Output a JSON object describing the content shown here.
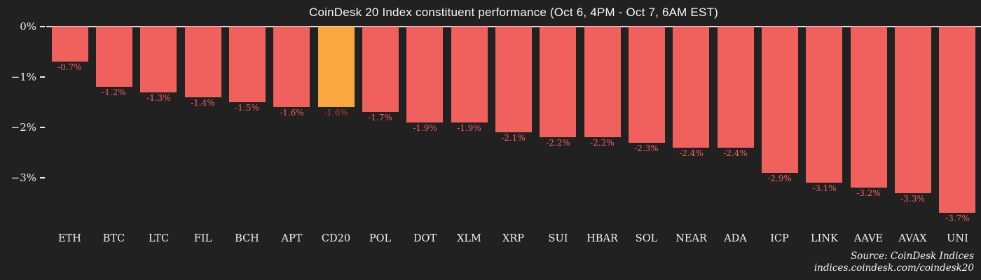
{
  "title": "CoinDesk 20 Index constituent performance (Oct 6, 4PM - Oct 7, 6AM EST)",
  "source": {
    "line1": "Source: CoinDesk Indices",
    "line2": "indices.coindesk.com/coindesk20"
  },
  "colors": {
    "background": "#212121",
    "bar": "#f0605d",
    "bar_highlight": "#f9a73e",
    "value_label": "#f0605d",
    "value_label_highlight": "#c23b2e",
    "axis_line": "#dcdcdc",
    "text": "#f2f2f2"
  },
  "chart_data": {
    "type": "bar",
    "title": "CoinDesk 20 Index constituent performance (Oct 6, 4PM - Oct 7, 6AM EST)",
    "categories": [
      "ETH",
      "BTC",
      "LTC",
      "FIL",
      "BCH",
      "APT",
      "CD20",
      "POL",
      "DOT",
      "XLM",
      "XRP",
      "SUI",
      "HBAR",
      "SOL",
      "NEAR",
      "ADA",
      "ICP",
      "LINK",
      "AAVE",
      "AVAX",
      "UNI"
    ],
    "values": [
      -0.7,
      -1.2,
      -1.3,
      -1.4,
      -1.5,
      -1.6,
      -1.6,
      -1.7,
      -1.9,
      -1.9,
      -2.1,
      -2.2,
      -2.2,
      -2.3,
      -2.4,
      -2.4,
      -2.9,
      -3.1,
      -3.2,
      -3.3,
      -3.7
    ],
    "value_labels": [
      "-0.7%",
      "-1.2%",
      "-1.3%",
      "-1.4%",
      "-1.5%",
      "-1.6%",
      "-1.6%",
      "-1.7%",
      "-1.9%",
      "-1.9%",
      "-2.1%",
      "-2.2%",
      "-2.2%",
      "-2.3%",
      "-2.4%",
      "-2.4%",
      "-2.9%",
      "-3.1%",
      "-3.2%",
      "-3.3%",
      "-3.7%"
    ],
    "highlight_index": 6,
    "highlight_category": "CD20",
    "yticks": [
      0,
      -1,
      -2,
      -3
    ],
    "ytick_labels": [
      "0%",
      "−1%",
      "−2%",
      "−3%"
    ],
    "xlabel": "",
    "ylabel": "",
    "ylim": [
      -4.1,
      0
    ],
    "grid": false,
    "legend": false
  }
}
